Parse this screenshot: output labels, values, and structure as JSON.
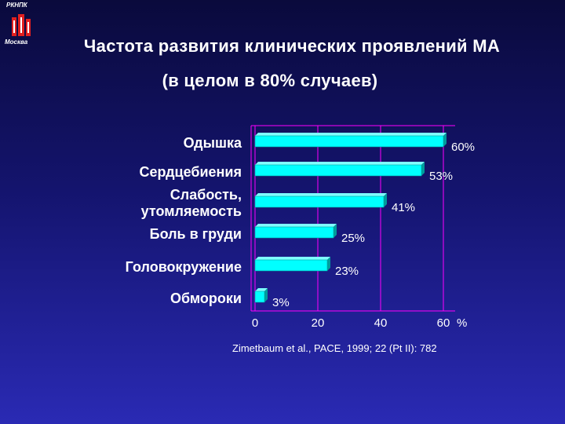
{
  "logo": {
    "top_text": "РКНПК",
    "bottom_text": "Москва"
  },
  "title": {
    "line1": "Частота развития клинических проявлений МА",
    "line2": "(в целом в 80% случаев)"
  },
  "citation": "Zimetbaum et al., PACE, 1999; 22 (Pt II): 782",
  "colors": {
    "bar": "#00ffff",
    "bar_dark": "#009c9c",
    "grid": "#ff00ff",
    "text": "#ffffff",
    "logo": "#e02020"
  },
  "chart_data": {
    "type": "bar",
    "orientation": "horizontal",
    "categories": [
      "Одышка",
      "Сердцебиения",
      "Слабость, утомляемость",
      "Боль в груди",
      "Головокружение",
      "Обмороки"
    ],
    "category_lines": [
      [
        "Одышка"
      ],
      [
        "Сердцебиения"
      ],
      [
        "Слабость,",
        "утомляемость"
      ],
      [
        "Боль в груди"
      ],
      [
        "Головокружение"
      ],
      [
        "Обмороки"
      ]
    ],
    "values": [
      60,
      53,
      41,
      25,
      23,
      3
    ],
    "value_labels": [
      "60%",
      "53%",
      "41%",
      "25%",
      "23%",
      "3%"
    ],
    "xlim": [
      0,
      60
    ],
    "xticks": [
      "0",
      "20",
      "40",
      "60"
    ],
    "xunit": "%",
    "grid": true
  }
}
